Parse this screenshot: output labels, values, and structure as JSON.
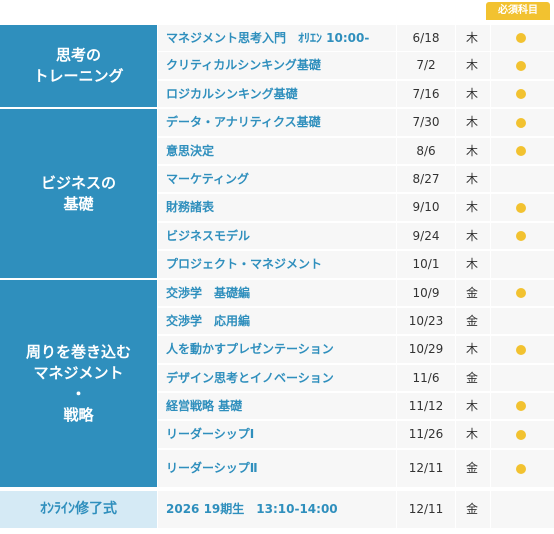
{
  "required_badge": "必須科目",
  "categories": [
    {
      "label": "思考の\nトレーニング"
    },
    {
      "label": "ビジネスの\n基礎"
    },
    {
      "label": "周りを巻き込む\nマネジメント\n・\n戦略"
    },
    {
      "label": "ｵﾝﾗｲﾝ修了式"
    }
  ],
  "rows": [
    {
      "name": "マネジメント思考入門　ｵﾘｴﾝ 10:00-",
      "date": "6/18",
      "day": "木",
      "required": true
    },
    {
      "name": "クリティカルシンキング基礎",
      "date": "7/2",
      "day": "木",
      "required": true
    },
    {
      "name": "ロジカルシンキング基礎",
      "date": "7/16",
      "day": "木",
      "required": true
    },
    {
      "name": "データ・アナリティクス基礎",
      "date": "7/30",
      "day": "木",
      "required": true
    },
    {
      "name": "意思決定",
      "date": "8/6",
      "day": "木",
      "required": true
    },
    {
      "name": "マーケティング",
      "date": "8/27",
      "day": "木",
      "required": false
    },
    {
      "name": "財務諸表",
      "date": "9/10",
      "day": "木",
      "required": true
    },
    {
      "name": "ビジネスモデル",
      "date": "9/24",
      "day": "木",
      "required": true
    },
    {
      "name": "プロジェクト・マネジメント",
      "date": "10/1",
      "day": "木",
      "required": false
    },
    {
      "name": "交渉学　基礎編",
      "date": "10/9",
      "day": "金",
      "required": true
    },
    {
      "name": "交渉学　応用編",
      "date": "10/23",
      "day": "金",
      "required": false
    },
    {
      "name": "人を動かすプレゼンテーション",
      "date": "10/29",
      "day": "木",
      "required": true
    },
    {
      "name": "デザイン思考とイノベーション",
      "date": "11/6",
      "day": "金",
      "required": false
    },
    {
      "name": "経営戦略 基礎",
      "date": "11/12",
      "day": "木",
      "required": true
    },
    {
      "name": "リーダーシップⅠ",
      "date": "11/26",
      "day": "木",
      "required": true
    },
    {
      "name": "リーダーシップⅡ",
      "date": "12/11",
      "day": "金",
      "required": true
    },
    {
      "name": "2026  19期生　13:10-14:00",
      "date": "12/11",
      "day": "金",
      "required": false
    }
  ]
}
